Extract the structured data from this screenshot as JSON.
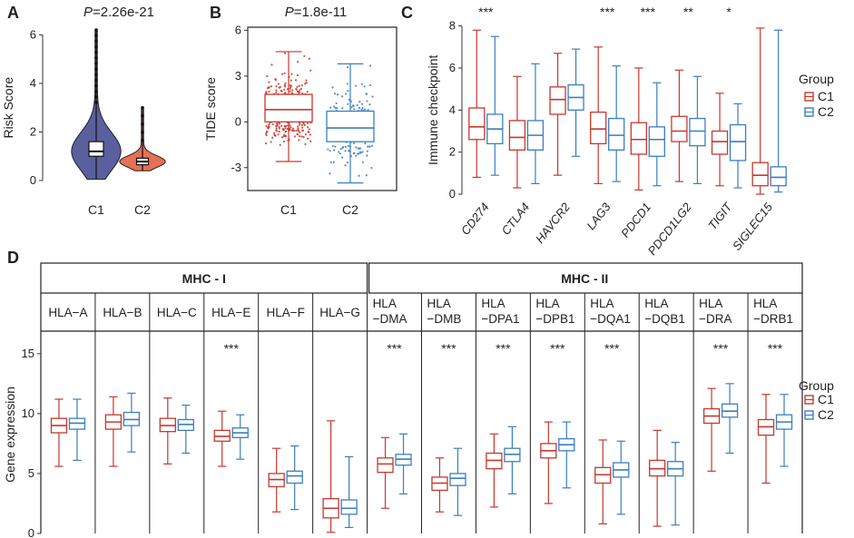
{
  "colors": {
    "c1": "#c8372d",
    "c2": "#3a7ec2",
    "c1_fill": "#e57055",
    "violet": "#5b5f9e",
    "dark": "#222222"
  },
  "panels": {
    "A": {
      "label": "A",
      "pvalue": "P=2.26e-21"
    },
    "B": {
      "label": "B",
      "pvalue": "P=1.8e-11"
    },
    "C": {
      "label": "C"
    },
    "D": {
      "label": "D"
    }
  },
  "legend": {
    "title": "Group",
    "c1": "C1",
    "c2": "C2"
  },
  "chart_data": [
    {
      "id": "A",
      "type": "violin",
      "title": "P=2.26e-21",
      "ylabel": "Risk Score",
      "ylim": [
        -0.3,
        6.5
      ],
      "yticks": [
        0,
        2,
        4,
        6
      ],
      "categories": [
        "C1",
        "C2"
      ],
      "boxes": [
        {
          "group": "C1",
          "min": 0.05,
          "q1": 1.0,
          "median": 1.2,
          "q3": 1.6,
          "max": 6.2
        },
        {
          "group": "C2",
          "min": 0.4,
          "q1": 0.65,
          "median": 0.78,
          "q3": 0.92,
          "max": 3.0
        }
      ]
    },
    {
      "id": "B",
      "type": "box_jitter",
      "title": "P=1.8e-11",
      "ylabel": "TIDE score",
      "ylim": [
        -4.5,
        6.2
      ],
      "yticks": [
        -3,
        0,
        3,
        6
      ],
      "categories": [
        "C1",
        "C2"
      ],
      "boxes": [
        {
          "group": "C1",
          "min": -2.6,
          "q1": 0.0,
          "median": 0.8,
          "q3": 1.8,
          "max": 4.6
        },
        {
          "group": "C2",
          "min": -4.0,
          "q1": -1.3,
          "median": -0.4,
          "q3": 0.7,
          "max": 3.8
        }
      ]
    },
    {
      "id": "C",
      "type": "grouped_box",
      "ylabel": "Immune checkpoint",
      "ylim": [
        0,
        8.2
      ],
      "yticks": [
        0,
        2,
        4,
        6,
        8
      ],
      "categories": [
        "CD274",
        "CTLA4",
        "HAVCR2",
        "LAG3",
        "PDCD1",
        "PDCD1LG2",
        "TIGIT",
        "SIGLEC15"
      ],
      "significance": [
        "***",
        "",
        "",
        "***",
        "***",
        "**",
        "*",
        ""
      ],
      "series": [
        {
          "name": "C1",
          "boxes": [
            {
              "min": 0.8,
              "q1": 2.6,
              "median": 3.2,
              "q3": 4.1,
              "max": 7.8
            },
            {
              "min": 0.3,
              "q1": 2.1,
              "median": 2.7,
              "q3": 3.5,
              "max": 5.6
            },
            {
              "min": 0.9,
              "q1": 3.8,
              "median": 4.5,
              "q3": 5.1,
              "max": 6.7
            },
            {
              "min": 0.5,
              "q1": 2.4,
              "median": 3.1,
              "q3": 3.9,
              "max": 7.0
            },
            {
              "min": 0.2,
              "q1": 1.9,
              "median": 2.6,
              "q3": 3.4,
              "max": 6.0
            },
            {
              "min": 0.6,
              "q1": 2.5,
              "median": 3.0,
              "q3": 3.7,
              "max": 5.9
            },
            {
              "min": 0.4,
              "q1": 1.9,
              "median": 2.5,
              "q3": 3.0,
              "max": 4.8
            },
            {
              "min": 0.0,
              "q1": 0.4,
              "median": 0.9,
              "q3": 1.5,
              "max": 7.9
            }
          ]
        },
        {
          "name": "C2",
          "boxes": [
            {
              "min": 0.9,
              "q1": 2.4,
              "median": 3.1,
              "q3": 3.8,
              "max": 7.5
            },
            {
              "min": 0.5,
              "q1": 2.1,
              "median": 2.8,
              "q3": 3.5,
              "max": 6.2
            },
            {
              "min": 1.8,
              "q1": 4.0,
              "median": 4.6,
              "q3": 5.2,
              "max": 6.9
            },
            {
              "min": 0.6,
              "q1": 2.1,
              "median": 2.8,
              "q3": 3.6,
              "max": 6.1
            },
            {
              "min": 0.4,
              "q1": 1.8,
              "median": 2.6,
              "q3": 3.2,
              "max": 5.3
            },
            {
              "min": 0.5,
              "q1": 2.3,
              "median": 3.0,
              "q3": 3.6,
              "max": 5.6
            },
            {
              "min": 0.3,
              "q1": 1.6,
              "median": 2.5,
              "q3": 3.3,
              "max": 4.3
            },
            {
              "min": 0.1,
              "q1": 0.4,
              "median": 0.8,
              "q3": 1.3,
              "max": 7.8
            }
          ]
        }
      ]
    },
    {
      "id": "D",
      "type": "grouped_box",
      "ylabel": "Gene expression",
      "ylim": [
        0,
        16.5
      ],
      "yticks": [
        0,
        5,
        10,
        15
      ],
      "group_headers": [
        {
          "label": "MHC - I",
          "span": 6
        },
        {
          "label": "MHC - II",
          "span": 8
        }
      ],
      "categories": [
        "HLA−A",
        "HLA−B",
        "HLA−C",
        "HLA−E",
        "HLA−F",
        "HLA−G",
        "HLA\n−DMA",
        "HLA\n−DMB",
        "HLA\n−DPA1",
        "HLA\n−DPB1",
        "HLA\n−DQA1",
        "HLA\n−DQB1",
        "HLA\n−DRA",
        "HLA\n−DRB1"
      ],
      "significance": [
        "",
        "",
        "",
        "***",
        "",
        "",
        "***",
        "***",
        "***",
        "***",
        "***",
        "",
        "***",
        "***"
      ],
      "series": [
        {
          "name": "C1",
          "boxes": [
            {
              "min": 5.6,
              "q1": 8.4,
              "median": 9.0,
              "q3": 9.6,
              "max": 11.2
            },
            {
              "min": 5.6,
              "q1": 8.7,
              "median": 9.3,
              "q3": 9.9,
              "max": 11.4
            },
            {
              "min": 5.8,
              "q1": 8.5,
              "median": 9.0,
              "q3": 9.6,
              "max": 11.3
            },
            {
              "min": 5.6,
              "q1": 7.7,
              "median": 8.1,
              "q3": 8.6,
              "max": 10.2
            },
            {
              "min": 1.8,
              "q1": 3.9,
              "median": 4.5,
              "q3": 5.0,
              "max": 7.1
            },
            {
              "min": 0.1,
              "q1": 1.3,
              "median": 2.1,
              "q3": 2.9,
              "max": 9.4
            },
            {
              "min": 2.1,
              "q1": 5.1,
              "median": 5.8,
              "q3": 6.3,
              "max": 8.0
            },
            {
              "min": 1.8,
              "q1": 3.6,
              "median": 4.2,
              "q3": 4.7,
              "max": 6.3
            },
            {
              "min": 2.2,
              "q1": 5.4,
              "median": 6.1,
              "q3": 6.7,
              "max": 8.3
            },
            {
              "min": 2.5,
              "q1": 6.3,
              "median": 6.9,
              "q3": 7.5,
              "max": 9.3
            },
            {
              "min": 0.8,
              "q1": 4.2,
              "median": 4.9,
              "q3": 5.5,
              "max": 7.8
            },
            {
              "min": 0.6,
              "q1": 4.8,
              "median": 5.4,
              "q3": 6.1,
              "max": 8.6
            },
            {
              "min": 5.2,
              "q1": 9.2,
              "median": 9.8,
              "q3": 10.4,
              "max": 12.1
            },
            {
              "min": 4.2,
              "q1": 8.2,
              "median": 8.9,
              "q3": 9.5,
              "max": 11.6
            }
          ]
        },
        {
          "name": "C2",
          "boxes": [
            {
              "min": 6.1,
              "q1": 8.7,
              "median": 9.2,
              "q3": 9.6,
              "max": 11.2
            },
            {
              "min": 6.8,
              "q1": 9.0,
              "median": 9.5,
              "q3": 10.1,
              "max": 11.7
            },
            {
              "min": 6.7,
              "q1": 8.6,
              "median": 9.1,
              "q3": 9.5,
              "max": 10.7
            },
            {
              "min": 6.2,
              "q1": 8.0,
              "median": 8.4,
              "q3": 8.8,
              "max": 9.9
            },
            {
              "min": 2.0,
              "q1": 4.2,
              "median": 4.8,
              "q3": 5.2,
              "max": 7.3
            },
            {
              "min": 0.5,
              "q1": 1.6,
              "median": 2.1,
              "q3": 2.8,
              "max": 6.4
            },
            {
              "min": 3.3,
              "q1": 5.7,
              "median": 6.2,
              "q3": 6.6,
              "max": 8.3
            },
            {
              "min": 1.5,
              "q1": 4.0,
              "median": 4.6,
              "q3": 5.0,
              "max": 7.1
            },
            {
              "min": 3.3,
              "q1": 6.0,
              "median": 6.6,
              "q3": 7.1,
              "max": 8.9
            },
            {
              "min": 3.8,
              "q1": 6.9,
              "median": 7.4,
              "q3": 7.9,
              "max": 9.3
            },
            {
              "min": 1.6,
              "q1": 4.7,
              "median": 5.3,
              "q3": 5.9,
              "max": 7.7
            },
            {
              "min": 0.7,
              "q1": 4.8,
              "median": 5.4,
              "q3": 6.0,
              "max": 7.6
            },
            {
              "min": 6.7,
              "q1": 9.7,
              "median": 10.2,
              "q3": 10.8,
              "max": 12.5
            },
            {
              "min": 5.6,
              "q1": 8.7,
              "median": 9.3,
              "q3": 9.9,
              "max": 11.6
            }
          ]
        }
      ]
    }
  ]
}
